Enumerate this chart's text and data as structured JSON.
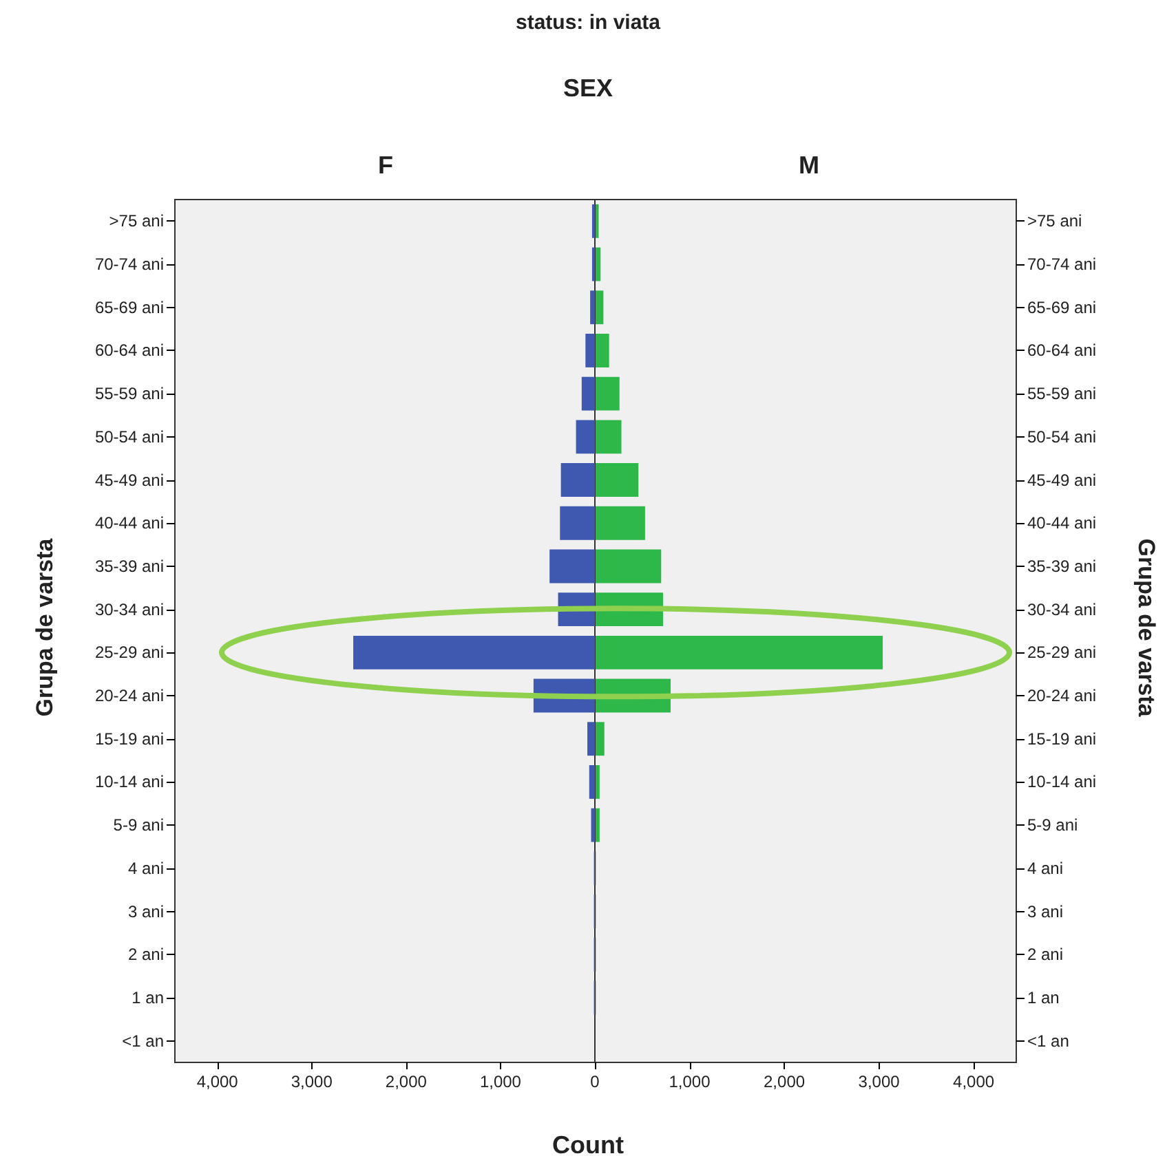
{
  "chart_data": [
    {
      "type": "bar",
      "orientation": "horizontal",
      "title": "F",
      "ylabel": "Grupa de varsta",
      "xlabel": "Count",
      "annotations": [
        "status: in viata",
        "SEX"
      ],
      "categories": [
        ">75 ani",
        "70-74 ani",
        "65-69 ani",
        "60-64 ani",
        "55-59 ani",
        "50-54 ani",
        "45-49 ani",
        "40-44 ani",
        "35-39 ani",
        "30-34 ani",
        "25-29 ani",
        "20-24 ani",
        "15-19 ani",
        "10-14 ani",
        "5-9 ani",
        "4 ani",
        "3 ani",
        "2 ani",
        "1 an",
        "<1 an"
      ],
      "series": [
        {
          "color": "#3f58b0",
          "values": [
            30,
            30,
            50,
            100,
            140,
            200,
            360,
            370,
            480,
            390,
            2560,
            650,
            80,
            60,
            40,
            10,
            10,
            10,
            10,
            0
          ]
        }
      ],
      "xlim": [
        4450,
        0
      ],
      "xticks": [
        {
          "value": 4000,
          "label": "4,000"
        },
        {
          "value": 3000,
          "label": "3,000"
        },
        {
          "value": 2000,
          "label": "2,000"
        },
        {
          "value": 1000,
          "label": "1,000"
        },
        0
      ]
    },
    {
      "type": "bar",
      "orientation": "horizontal",
      "title": "M",
      "ylabel": "Grupa de varsta",
      "categories": [
        ">75 ani",
        "70-74 ani",
        "65-69 ani",
        "60-64 ani",
        "55-59 ani",
        "50-54 ani",
        "45-49 ani",
        "40-44 ani",
        "35-39 ani",
        "30-34 ani",
        "25-29 ani",
        "20-24 ani",
        "15-19 ani",
        "10-14 ani",
        "5-9 ani",
        "4 ani",
        "3 ani",
        "2 ani",
        "1 an",
        "<1 an"
      ],
      "series": [
        {
          "color": "#2fb84a",
          "values": [
            40,
            60,
            90,
            150,
            260,
            280,
            460,
            530,
            700,
            720,
            3040,
            800,
            100,
            50,
            50,
            10,
            10,
            10,
            10,
            0
          ]
        }
      ],
      "xlim": [
        0,
        4450
      ],
      "xticks": [
        {
          "value": 0,
          "label": null
        },
        {
          "value": 1000,
          "label": "1,000"
        },
        {
          "value": 2000,
          "label": "2,000"
        },
        {
          "value": 3000,
          "label": "3,000"
        },
        {
          "value": 4000,
          "label": "4,000"
        }
      ]
    }
  ]
}
